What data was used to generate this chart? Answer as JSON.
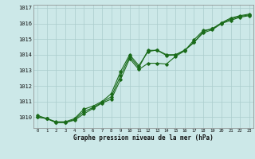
{
  "title": "Graphe pression niveau de la mer (hPa)",
  "hours": [
    0,
    1,
    2,
    3,
    4,
    5,
    6,
    7,
    8,
    9,
    10,
    11,
    12,
    13,
    14,
    15,
    16,
    17,
    18,
    19,
    20,
    21,
    22,
    23
  ],
  "ylim": [
    1009.3,
    1017.2
  ],
  "yticks": [
    1010,
    1011,
    1012,
    1013,
    1014,
    1015,
    1016,
    1017
  ],
  "bg_color": "#cce8e8",
  "grid_color": "#aacccc",
  "line_color": "#1a6b1a",
  "line1": [
    1010.1,
    1009.9,
    1009.7,
    1009.7,
    1009.9,
    1010.5,
    1010.7,
    1011.0,
    1011.5,
    1012.9,
    1014.0,
    1013.3,
    1014.2,
    1014.3,
    1014.0,
    1014.0,
    1014.3,
    1014.8,
    1015.4,
    1015.6,
    1016.0,
    1016.2,
    1016.4,
    1016.5
  ],
  "line2": [
    1010.0,
    1009.9,
    1009.65,
    1009.65,
    1009.8,
    1010.2,
    1010.55,
    1010.9,
    1011.15,
    1012.4,
    1013.75,
    1013.05,
    1013.45,
    1013.45,
    1013.4,
    1013.9,
    1014.25,
    1014.95,
    1015.55,
    1015.65,
    1016.05,
    1016.35,
    1016.5,
    1016.6
  ],
  "line3": [
    1010.0,
    1009.9,
    1009.65,
    1009.65,
    1009.85,
    1010.35,
    1010.6,
    1010.95,
    1011.3,
    1012.65,
    1013.88,
    1013.18,
    1014.28,
    1014.28,
    1013.95,
    1013.98,
    1014.28,
    1014.78,
    1015.48,
    1015.68,
    1016.02,
    1016.28,
    1016.45,
    1016.55
  ]
}
